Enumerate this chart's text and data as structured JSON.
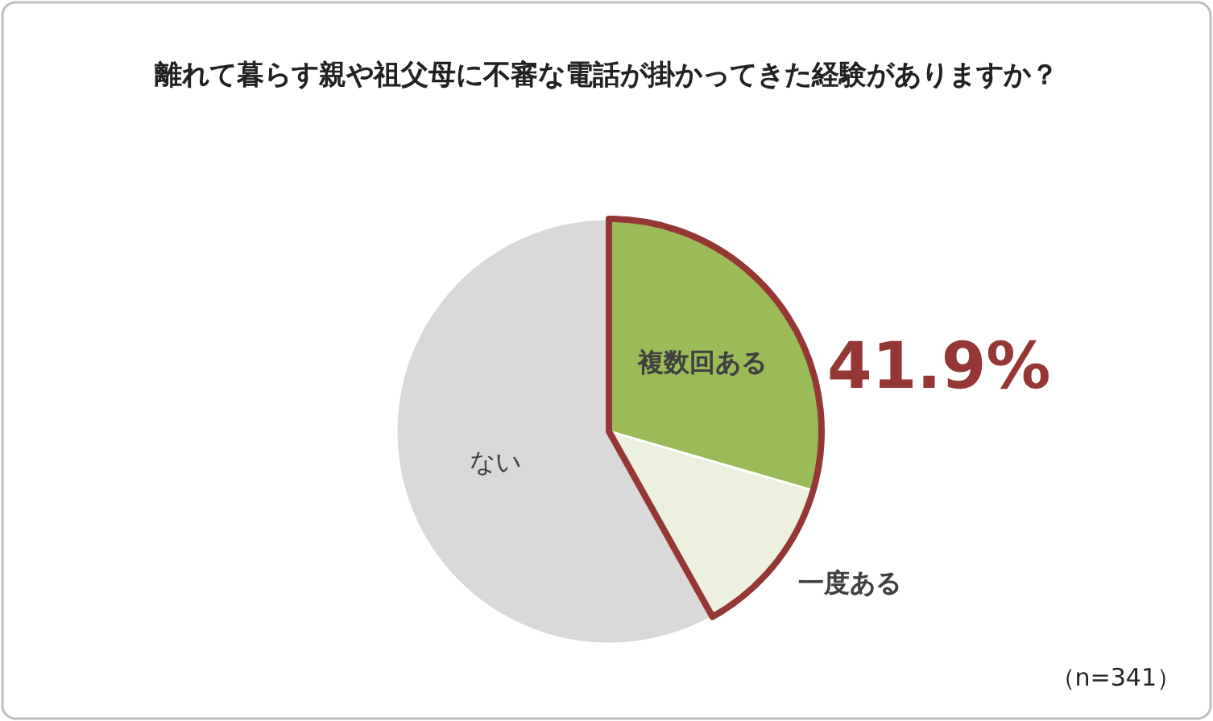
{
  "chart_data": {
    "type": "pie",
    "title": "離れて暮らす親や祖父母に不審な電話が掛かってきた経験がありますか？",
    "categories": [
      "複数回ある",
      "一度ある",
      "ない"
    ],
    "values": [
      29.5,
      12.4,
      58.1
    ],
    "colors": [
      "#9bbb59",
      "#ebf1de",
      "#d9d9d9"
    ],
    "annotations": [
      "41.9%",
      "（n=341）"
    ]
  }
}
